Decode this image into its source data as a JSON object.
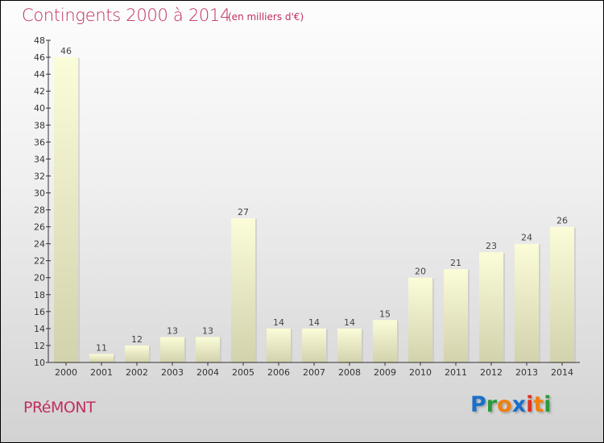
{
  "header": {
    "title": "Contingents 2000 à 2014",
    "unit": "(en milliers d'€)"
  },
  "footer": {
    "town": "PRéMONT",
    "logo": "Proxiti"
  },
  "colors": {
    "title": "#c0305e",
    "bar_top": "#fbfcd8",
    "bar_bottom": "#d2d2ad",
    "logo": [
      "#1a6fc9",
      "#2a9a3a",
      "#f07f10",
      "#1a6fc9",
      "#e03020",
      "#f07f10",
      "#2a9a3a"
    ]
  },
  "chart_data": {
    "type": "bar",
    "title": "Contingents 2000 à 2014",
    "xlabel": "",
    "ylabel": "",
    "categories": [
      "2000",
      "2001",
      "2002",
      "2003",
      "2004",
      "2005",
      "2006",
      "2007",
      "2008",
      "2009",
      "2010",
      "2011",
      "2012",
      "2013",
      "2014"
    ],
    "values": [
      46,
      11,
      12,
      13,
      13,
      27,
      14,
      14,
      14,
      15,
      20,
      21,
      23,
      24,
      26
    ],
    "ylim": [
      10,
      48
    ],
    "yticks": [
      10,
      12,
      14,
      16,
      18,
      20,
      22,
      24,
      26,
      28,
      30,
      32,
      34,
      36,
      38,
      40,
      42,
      44,
      46,
      48
    ],
    "grid": false
  }
}
